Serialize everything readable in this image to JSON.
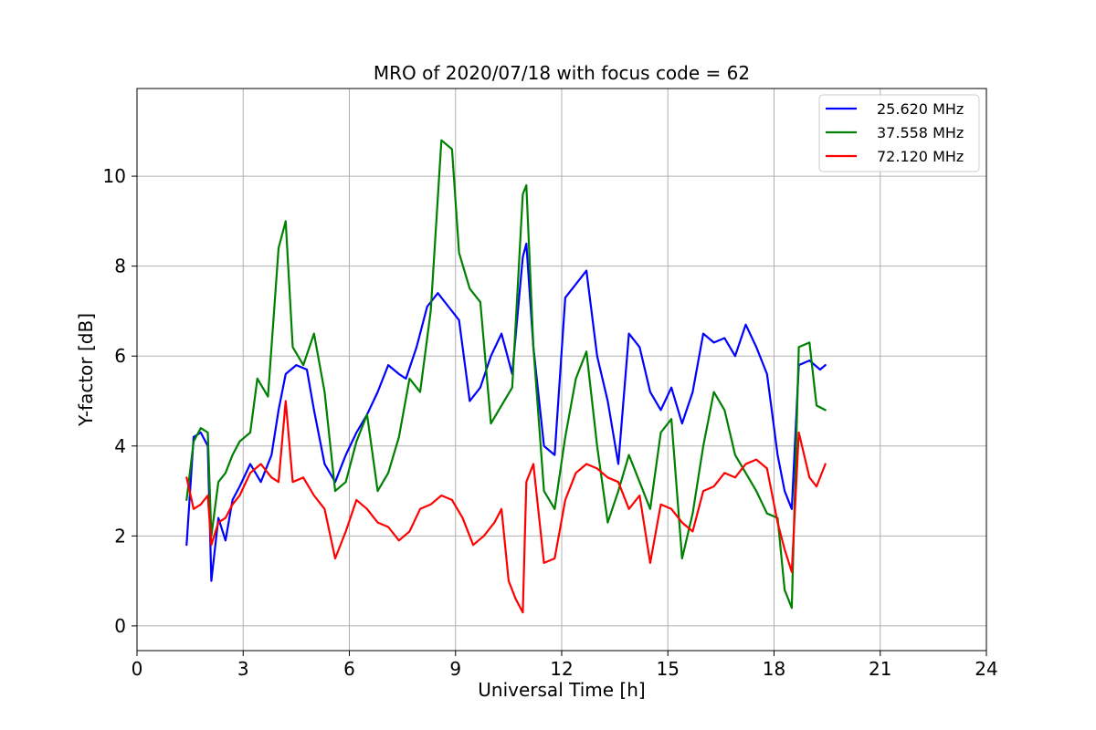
{
  "chart_data": {
    "type": "line",
    "title": "MRO of 2020/07/18 with focus code = 62",
    "xlabel": "Universal Time [h]",
    "ylabel": "Y-factor [dB]",
    "xlim": [
      0,
      24
    ],
    "ylim": [
      -0.55,
      11.95
    ],
    "xticks": [
      0,
      3,
      6,
      9,
      12,
      15,
      18,
      21,
      24
    ],
    "yticks": [
      0,
      2,
      4,
      6,
      8,
      10
    ],
    "grid": true,
    "legend_position": "top-right",
    "series": [
      {
        "name": "25.620 MHz",
        "color": "#0000ff",
        "x": [
          1.4,
          1.6,
          1.8,
          2.0,
          2.1,
          2.3,
          2.5,
          2.7,
          2.9,
          3.2,
          3.5,
          3.8,
          4.0,
          4.2,
          4.5,
          4.8,
          5.0,
          5.3,
          5.6,
          5.9,
          6.2,
          6.5,
          6.8,
          7.1,
          7.4,
          7.6,
          7.9,
          8.2,
          8.5,
          8.8,
          9.1,
          9.4,
          9.7,
          10.0,
          10.3,
          10.6,
          10.9,
          11.0,
          11.2,
          11.5,
          11.8,
          12.1,
          12.4,
          12.7,
          13.0,
          13.3,
          13.6,
          13.9,
          14.2,
          14.5,
          14.8,
          15.1,
          15.4,
          15.7,
          16.0,
          16.3,
          16.6,
          16.9,
          17.2,
          17.5,
          17.8,
          18.1,
          18.3,
          18.5,
          18.7,
          19.0,
          19.3,
          19.45
        ],
        "y": [
          1.8,
          4.2,
          4.3,
          4.0,
          1.0,
          2.4,
          1.9,
          2.8,
          3.1,
          3.6,
          3.2,
          3.8,
          4.8,
          5.6,
          5.8,
          5.7,
          4.8,
          3.6,
          3.2,
          3.8,
          4.3,
          4.7,
          5.2,
          5.8,
          5.6,
          5.5,
          6.2,
          7.1,
          7.4,
          7.1,
          6.8,
          5.0,
          5.3,
          6.0,
          6.5,
          5.6,
          8.2,
          8.5,
          6.2,
          4.0,
          3.8,
          7.3,
          7.6,
          7.9,
          6.0,
          5.0,
          3.6,
          6.5,
          6.2,
          5.2,
          4.8,
          5.3,
          4.5,
          5.2,
          6.5,
          6.3,
          6.4,
          6.0,
          6.7,
          6.2,
          5.6,
          3.8,
          3.0,
          2.6,
          5.8,
          5.9,
          5.7,
          5.8
        ]
      },
      {
        "name": "37.558 MHz",
        "color": "#008000",
        "x": [
          1.4,
          1.6,
          1.8,
          2.0,
          2.1,
          2.3,
          2.5,
          2.7,
          2.9,
          3.2,
          3.4,
          3.7,
          4.0,
          4.2,
          4.4,
          4.7,
          5.0,
          5.3,
          5.6,
          5.9,
          6.2,
          6.5,
          6.8,
          7.1,
          7.4,
          7.7,
          8.0,
          8.3,
          8.6,
          8.9,
          9.1,
          9.4,
          9.7,
          10.0,
          10.3,
          10.6,
          10.9,
          11.0,
          11.2,
          11.5,
          11.8,
          12.1,
          12.4,
          12.7,
          13.0,
          13.3,
          13.6,
          13.9,
          14.2,
          14.5,
          14.8,
          15.1,
          15.4,
          15.7,
          16.0,
          16.3,
          16.6,
          16.9,
          17.2,
          17.5,
          17.8,
          18.1,
          18.3,
          18.5,
          18.7,
          19.0,
          19.2,
          19.45
        ],
        "y": [
          2.8,
          4.1,
          4.4,
          4.3,
          2.0,
          3.2,
          3.4,
          3.8,
          4.1,
          4.3,
          5.5,
          5.1,
          8.4,
          9.0,
          6.2,
          5.8,
          6.5,
          5.2,
          3.0,
          3.2,
          4.1,
          4.7,
          3.0,
          3.4,
          4.2,
          5.5,
          5.2,
          7.0,
          10.8,
          10.6,
          8.3,
          7.5,
          7.2,
          4.5,
          4.9,
          5.3,
          9.6,
          9.8,
          6.2,
          3.0,
          2.6,
          4.2,
          5.5,
          6.1,
          4.0,
          2.3,
          3.0,
          3.8,
          3.2,
          2.6,
          4.3,
          4.6,
          1.5,
          2.5,
          4.0,
          5.2,
          4.8,
          3.8,
          3.4,
          3.0,
          2.5,
          2.4,
          0.8,
          0.4,
          6.2,
          6.3,
          4.9,
          4.8
        ]
      },
      {
        "name": "72.120 MHz",
        "color": "#ff0000",
        "x": [
          1.4,
          1.6,
          1.8,
          2.0,
          2.1,
          2.3,
          2.5,
          2.7,
          2.9,
          3.2,
          3.5,
          3.8,
          4.0,
          4.2,
          4.4,
          4.7,
          5.0,
          5.3,
          5.6,
          5.9,
          6.2,
          6.5,
          6.8,
          7.1,
          7.4,
          7.7,
          8.0,
          8.3,
          8.6,
          8.9,
          9.2,
          9.5,
          9.8,
          10.1,
          10.3,
          10.5,
          10.7,
          10.9,
          11.0,
          11.2,
          11.5,
          11.8,
          12.1,
          12.4,
          12.7,
          13.0,
          13.3,
          13.6,
          13.9,
          14.2,
          14.5,
          14.8,
          15.1,
          15.4,
          15.7,
          16.0,
          16.3,
          16.6,
          16.9,
          17.2,
          17.5,
          17.8,
          18.1,
          18.3,
          18.5,
          18.7,
          19.0,
          19.2,
          19.45
        ],
        "y": [
          3.3,
          2.6,
          2.7,
          2.9,
          1.8,
          2.3,
          2.4,
          2.7,
          2.9,
          3.4,
          3.6,
          3.3,
          3.2,
          5.0,
          3.2,
          3.3,
          2.9,
          2.6,
          1.5,
          2.1,
          2.8,
          2.6,
          2.3,
          2.2,
          1.9,
          2.1,
          2.6,
          2.7,
          2.9,
          2.8,
          2.4,
          1.8,
          2.0,
          2.3,
          2.6,
          1.0,
          0.6,
          0.3,
          3.2,
          3.6,
          1.4,
          1.5,
          2.8,
          3.4,
          3.6,
          3.5,
          3.3,
          3.2,
          2.6,
          2.9,
          1.4,
          2.7,
          2.6,
          2.3,
          2.1,
          3.0,
          3.1,
          3.4,
          3.3,
          3.6,
          3.7,
          3.5,
          2.3,
          1.7,
          1.2,
          4.3,
          3.3,
          3.1,
          3.6
        ]
      }
    ]
  }
}
